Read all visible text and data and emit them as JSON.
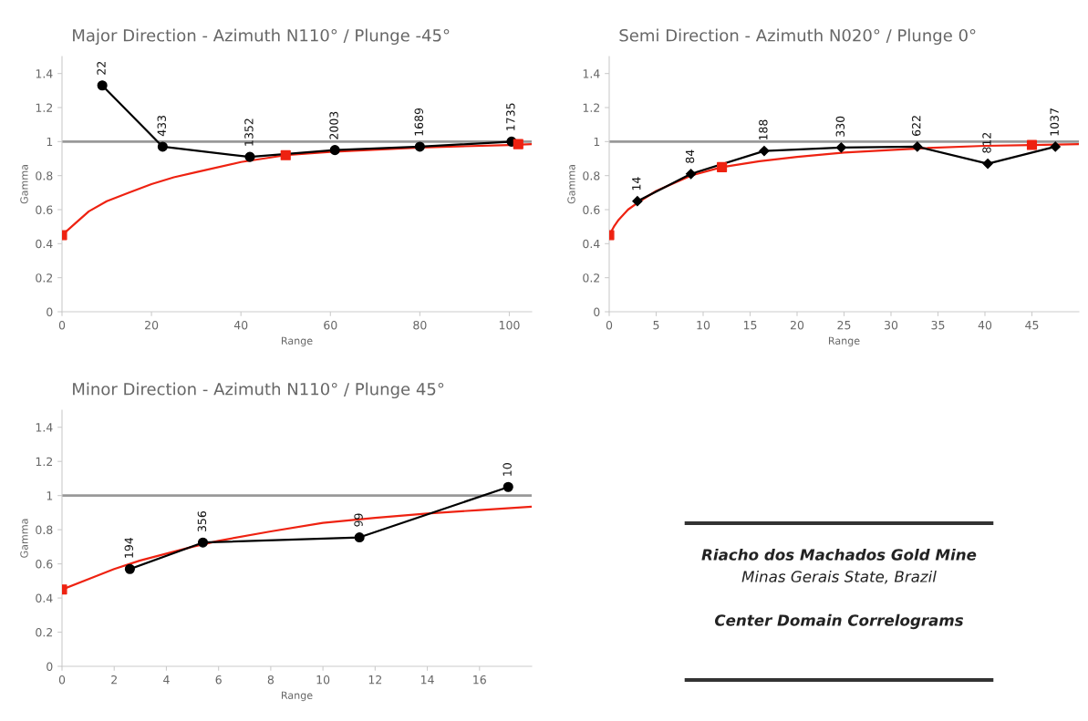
{
  "chart_data": [
    {
      "type": "line",
      "title": "Major Direction - Azimuth N110° / Plunge -45°",
      "xlabel": "Range",
      "ylabel": "Gamma",
      "xlim": [
        0,
        105
      ],
      "xticks": [
        0,
        20,
        40,
        60,
        80,
        100
      ],
      "ylim": [
        0,
        1.5
      ],
      "yticks": [
        0,
        0.2,
        0.4,
        0.6,
        0.8,
        1,
        1.2,
        1.4
      ],
      "grid": false,
      "legend": false,
      "ref_lines": [
        {
          "axis": "y",
          "value": 1,
          "color": "#999999"
        }
      ],
      "series": [
        {
          "type": "line",
          "color": "#ee2211",
          "marker": "none",
          "x": [
            0,
            3,
            6,
            10,
            15,
            20,
            25,
            30,
            40,
            50,
            60,
            80,
            100,
            105
          ],
          "values": [
            0.45,
            0.52,
            0.59,
            0.65,
            0.7,
            0.75,
            0.79,
            0.82,
            0.88,
            0.92,
            0.94,
            0.965,
            0.98,
            0.985
          ]
        },
        {
          "type": "scatter",
          "color": "#ee2211",
          "marker": "square",
          "x": [
            0,
            50,
            102
          ],
          "values": [
            0.45,
            0.92,
            0.985
          ]
        },
        {
          "type": "line",
          "color": "#000000",
          "marker": "circle",
          "x": [
            9,
            22.5,
            42,
            61,
            80,
            100.5
          ],
          "values": [
            1.33,
            0.97,
            0.91,
            0.95,
            0.97,
            1.0
          ]
        }
      ],
      "annotations": [
        {
          "text": "22",
          "x": 9,
          "y": 1.33
        },
        {
          "text": "433",
          "x": 22.5,
          "y": 0.97
        },
        {
          "text": "1352",
          "x": 42,
          "y": 0.91
        },
        {
          "text": "2003",
          "x": 61,
          "y": 0.95
        },
        {
          "text": "1689",
          "x": 80,
          "y": 0.97
        },
        {
          "text": "1735",
          "x": 100.5,
          "y": 1.0
        }
      ]
    },
    {
      "type": "line",
      "title": "Semi Direction - Azimuth N020° / Plunge 0°",
      "xlabel": "Range",
      "ylabel": "Gamma",
      "xlim": [
        0,
        50
      ],
      "xticks": [
        0,
        5,
        10,
        15,
        20,
        25,
        30,
        35,
        40,
        45
      ],
      "ylim": [
        0,
        1.5
      ],
      "yticks": [
        0,
        0.2,
        0.4,
        0.6,
        0.8,
        1,
        1.2,
        1.4
      ],
      "grid": false,
      "legend": false,
      "ref_lines": [
        {
          "axis": "y",
          "value": 1,
          "color": "#999999"
        }
      ],
      "series": [
        {
          "type": "line",
          "color": "#ee2211",
          "marker": "none",
          "x": [
            0,
            0.5,
            1,
            2,
            3,
            5,
            8.7,
            12,
            16,
            20,
            25,
            33,
            40,
            45,
            50
          ],
          "values": [
            0.45,
            0.5,
            0.54,
            0.6,
            0.64,
            0.71,
            0.8,
            0.85,
            0.885,
            0.91,
            0.935,
            0.96,
            0.975,
            0.98,
            0.985
          ]
        },
        {
          "type": "scatter",
          "color": "#ee2211",
          "marker": "square",
          "x": [
            0,
            12,
            45
          ],
          "values": [
            0.45,
            0.85,
            0.98
          ]
        },
        {
          "type": "line",
          "color": "#000000",
          "marker": "diamond",
          "x": [
            3,
            8.7,
            16.5,
            24.7,
            32.8,
            40.3,
            47.5
          ],
          "values": [
            0.65,
            0.81,
            0.945,
            0.965,
            0.97,
            0.87,
            0.97
          ]
        }
      ],
      "annotations": [
        {
          "text": "14",
          "x": 3,
          "y": 0.65
        },
        {
          "text": "84",
          "x": 8.7,
          "y": 0.81
        },
        {
          "text": "188",
          "x": 16.5,
          "y": 0.945
        },
        {
          "text": "330",
          "x": 24.7,
          "y": 0.965
        },
        {
          "text": "622",
          "x": 32.8,
          "y": 0.97
        },
        {
          "text": "812",
          "x": 40.3,
          "y": 0.87
        },
        {
          "text": "1037",
          "x": 47.5,
          "y": 0.97
        }
      ]
    },
    {
      "type": "line",
      "title": "Minor Direction - Azimuth N110° / Plunge 45°",
      "xlabel": "Range",
      "ylabel": "Gamma",
      "xlim": [
        0,
        18
      ],
      "xticks": [
        0,
        2,
        4,
        6,
        8,
        10,
        12,
        14,
        16
      ],
      "ylim": [
        0,
        1.5
      ],
      "yticks": [
        0,
        0.2,
        0.4,
        0.6,
        0.8,
        1,
        1.2,
        1.4
      ],
      "grid": false,
      "legend": false,
      "ref_lines": [
        {
          "axis": "y",
          "value": 1,
          "color": "#999999"
        }
      ],
      "series": [
        {
          "type": "line",
          "color": "#ee2211",
          "marker": "none",
          "x": [
            0,
            1,
            2,
            3,
            4,
            5,
            6,
            8,
            10,
            12,
            14,
            16,
            18
          ],
          "values": [
            0.45,
            0.51,
            0.57,
            0.62,
            0.66,
            0.7,
            0.735,
            0.79,
            0.84,
            0.87,
            0.895,
            0.915,
            0.935
          ]
        },
        {
          "type": "scatter",
          "color": "#ee2211",
          "marker": "square",
          "x": [
            0
          ],
          "values": [
            0.45
          ]
        },
        {
          "type": "line",
          "color": "#000000",
          "marker": "circle",
          "x": [
            2.6,
            5.4,
            11.4,
            17.1
          ],
          "values": [
            0.57,
            0.725,
            0.755,
            1.05
          ]
        }
      ],
      "annotations": [
        {
          "text": "194",
          "x": 2.6,
          "y": 0.57
        },
        {
          "text": "356",
          "x": 5.4,
          "y": 0.725
        },
        {
          "text": "99",
          "x": 11.4,
          "y": 0.755
        },
        {
          "text": "10",
          "x": 17.1,
          "y": 1.05
        }
      ]
    },
    {
      "type": "other",
      "annotations": [
        "Riacho dos Machados Gold Mine",
        "Minas Gerais State, Brazil",
        "Center Domain Correlograms"
      ]
    }
  ]
}
